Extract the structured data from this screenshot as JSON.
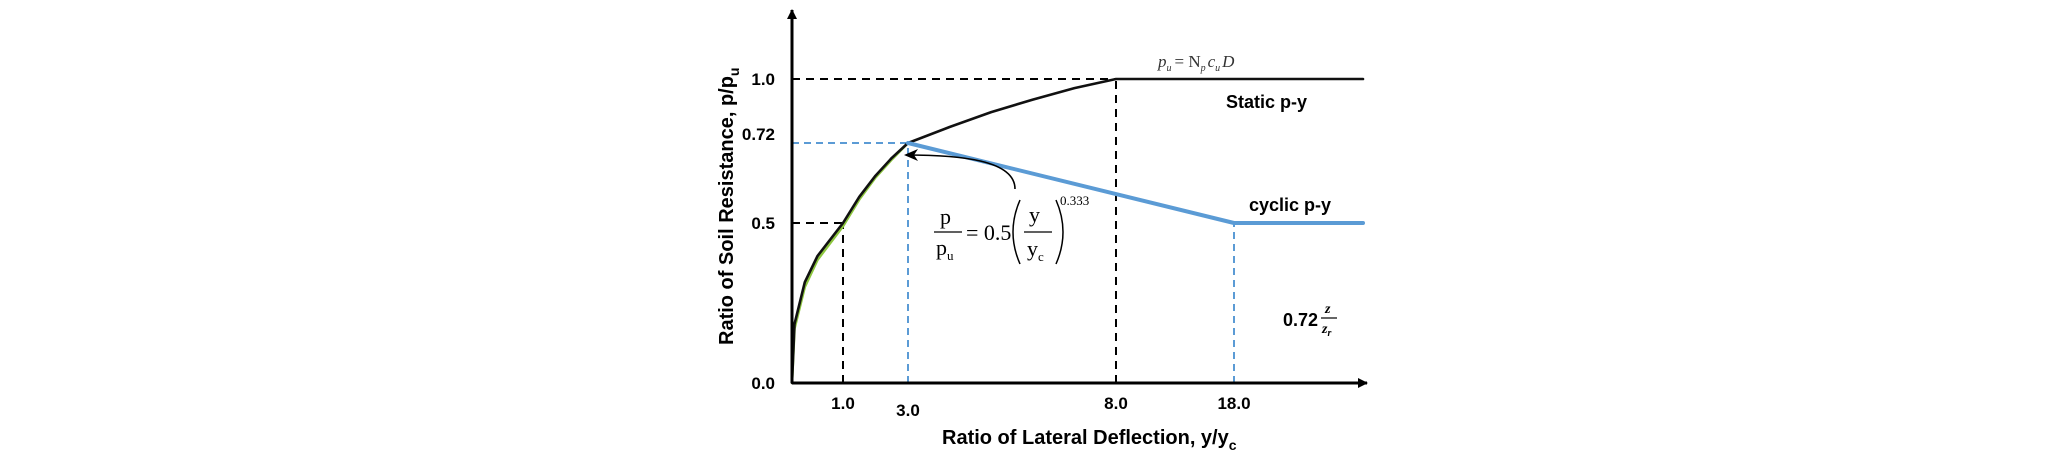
{
  "chart_data": {
    "type": "line",
    "xlabel": "Ratio of Lateral Deflection,  y/y",
    "xlabel_sub": "c",
    "ylabel": "Ratio of Soil Resistance,  p/p",
    "ylabel_sub": "u",
    "x_ticks": [
      "1.0",
      "3.0",
      "8.0",
      "18.0"
    ],
    "y_ticks": [
      "0.0",
      "0.5",
      "0.72",
      "1.0"
    ],
    "x_tick_values": [
      1,
      3,
      8,
      18
    ],
    "y_tick_values": [
      0,
      0.5,
      0.72,
      1.0
    ],
    "xlim": [
      0,
      24
    ],
    "ylim": [
      0,
      1.18
    ],
    "series": [
      {
        "name": "Static p-y",
        "color": "#111111",
        "description": "p/pu = 0.5 (y/yc)^0.333 up to 1.0 at y/yc = 8, constant afterwards",
        "points": [
          [
            0,
            0
          ],
          [
            0.05,
            0.184
          ],
          [
            0.25,
            0.315
          ],
          [
            0.5,
            0.397
          ],
          [
            1,
            0.5
          ],
          [
            1.5,
            0.572
          ],
          [
            2,
            0.63
          ],
          [
            2.5,
            0.679
          ],
          [
            3,
            0.72
          ],
          [
            4,
            0.79
          ],
          [
            5,
            0.855
          ],
          [
            6,
            0.91
          ],
          [
            7,
            0.96
          ],
          [
            8,
            1.0
          ],
          [
            24,
            1.0
          ]
        ]
      },
      {
        "name": "cyclic p-y",
        "color": "#5b9bd5",
        "points": [
          [
            3,
            0.72
          ],
          [
            18,
            0.5
          ],
          [
            24,
            0.5
          ]
        ]
      },
      {
        "name": "",
        "color": "#8dc63f",
        "points": [
          [
            0,
            0
          ],
          [
            0.05,
            0.17
          ],
          [
            0.25,
            0.3
          ],
          [
            0.5,
            0.385
          ],
          [
            1,
            0.49
          ],
          [
            1.5,
            0.565
          ],
          [
            2,
            0.625
          ],
          [
            2.5,
            0.675
          ],
          [
            3,
            0.72
          ]
        ]
      }
    ],
    "reference_lines": {
      "black_dashed": [
        [
          [
            1,
            0
          ],
          [
            1,
            0.5
          ]
        ],
        [
          [
            0,
            0.5
          ],
          [
            1,
            0.5
          ]
        ],
        [
          [
            8,
            0
          ],
          [
            8,
            1.0
          ]
        ],
        [
          [
            0,
            1.0
          ],
          [
            8,
            1.0
          ]
        ]
      ],
      "blue_dashed": [
        [
          [
            3,
            0
          ],
          [
            3,
            0.72
          ]
        ],
        [
          [
            0,
            0.72
          ],
          [
            3,
            0.72
          ]
        ],
        [
          [
            18,
            0
          ],
          [
            18,
            0.5
          ]
        ]
      ]
    },
    "annotations": {
      "static_label": "Static p-y",
      "cyclic_label": "cyclic p-y",
      "pu_formula": {
        "lhs": "p",
        "lhs_sub": "u",
        "eq": "= N",
        "n_sub": "p",
        "c": "c",
        "c_sub": "u",
        "d": "D"
      },
      "equation": {
        "num": "p",
        "den": "p",
        "den_sub": "u",
        "coef": "= 0.5",
        "inner_num": "y",
        "inner_den": "y",
        "inner_den_sub": "c",
        "exponent": "0.333"
      },
      "depth_formula": {
        "coef": "0.72",
        "num": "z",
        "den": "z",
        "den_sub": "r"
      }
    },
    "colors": {
      "axis": "#000000",
      "static": "#111111",
      "cyclic": "#5b9bd5",
      "green": "#8dc63f"
    }
  }
}
